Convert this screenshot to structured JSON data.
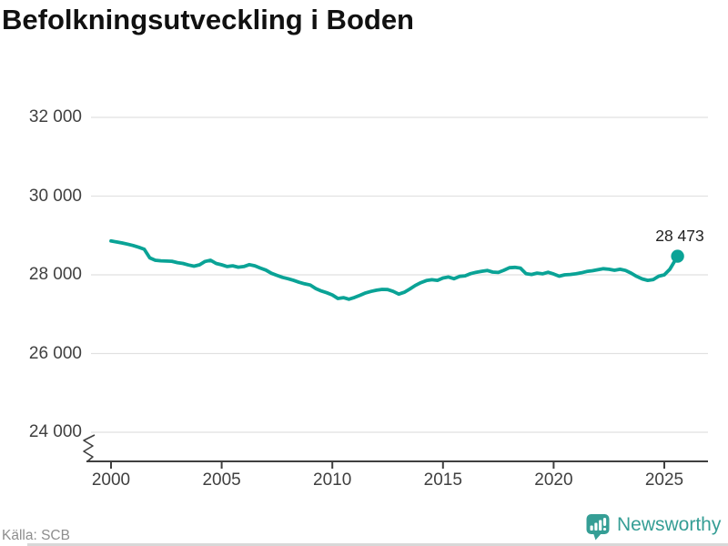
{
  "title": "Befolkningsutveckling i Boden",
  "source": "Källa: SCB",
  "brand": {
    "name": "Newsworthy",
    "icon": "newsworthy-bar-chart-speech-bubble",
    "color": "#359e95"
  },
  "chart_data": {
    "type": "line",
    "title": "Befolkningsutveckling i Boden",
    "xlabel": "",
    "ylabel": "",
    "grid": "horizontal",
    "line_color": "#0aa396",
    "marker_color": "#0aa396",
    "x_axis": {
      "ticks": [
        2000,
        2005,
        2010,
        2015,
        2020,
        2025
      ],
      "tick_labels": [
        "2000",
        "2005",
        "2010",
        "2015",
        "2020",
        "2025"
      ]
    },
    "y_axis": {
      "ticks": [
        24000,
        26000,
        28000,
        30000,
        32000
      ],
      "tick_labels": [
        "24 000",
        "26 000",
        "28 000",
        "30 000",
        "32 000"
      ],
      "axis_break": true
    },
    "annotation": {
      "label": "28 473",
      "value": 28473,
      "year": 2025.6
    },
    "series": [
      {
        "name": "Befolkning i Boden",
        "points": [
          [
            2000,
            28860
          ],
          [
            2000.25,
            28835
          ],
          [
            2000.5,
            28810
          ],
          [
            2000.75,
            28780
          ],
          [
            2001,
            28745
          ],
          [
            2001.25,
            28700
          ],
          [
            2001.5,
            28650
          ],
          [
            2001.75,
            28430
          ],
          [
            2002,
            28370
          ],
          [
            2002.25,
            28355
          ],
          [
            2002.5,
            28350
          ],
          [
            2002.75,
            28345
          ],
          [
            2003,
            28310
          ],
          [
            2003.25,
            28290
          ],
          [
            2003.5,
            28250
          ],
          [
            2003.75,
            28220
          ],
          [
            2004,
            28255
          ],
          [
            2004.25,
            28340
          ],
          [
            2004.5,
            28370
          ],
          [
            2004.75,
            28290
          ],
          [
            2005,
            28255
          ],
          [
            2005.25,
            28210
          ],
          [
            2005.5,
            28230
          ],
          [
            2005.75,
            28195
          ],
          [
            2006,
            28210
          ],
          [
            2006.25,
            28260
          ],
          [
            2006.5,
            28230
          ],
          [
            2006.75,
            28170
          ],
          [
            2007,
            28120
          ],
          [
            2007.25,
            28040
          ],
          [
            2007.5,
            27985
          ],
          [
            2007.75,
            27935
          ],
          [
            2008,
            27900
          ],
          [
            2008.25,
            27860
          ],
          [
            2008.5,
            27810
          ],
          [
            2008.75,
            27770
          ],
          [
            2009,
            27740
          ],
          [
            2009.25,
            27650
          ],
          [
            2009.5,
            27590
          ],
          [
            2009.75,
            27545
          ],
          [
            2010,
            27490
          ],
          [
            2010.25,
            27400
          ],
          [
            2010.5,
            27420
          ],
          [
            2010.75,
            27380
          ],
          [
            2011,
            27425
          ],
          [
            2011.25,
            27480
          ],
          [
            2011.5,
            27540
          ],
          [
            2011.75,
            27580
          ],
          [
            2012,
            27610
          ],
          [
            2012.25,
            27630
          ],
          [
            2012.5,
            27625
          ],
          [
            2012.75,
            27580
          ],
          [
            2013,
            27510
          ],
          [
            2013.25,
            27555
          ],
          [
            2013.5,
            27640
          ],
          [
            2013.75,
            27730
          ],
          [
            2014,
            27800
          ],
          [
            2014.25,
            27855
          ],
          [
            2014.5,
            27875
          ],
          [
            2014.75,
            27860
          ],
          [
            2015,
            27920
          ],
          [
            2015.25,
            27945
          ],
          [
            2015.5,
            27900
          ],
          [
            2015.75,
            27960
          ],
          [
            2016,
            27975
          ],
          [
            2016.25,
            28030
          ],
          [
            2016.5,
            28065
          ],
          [
            2016.75,
            28090
          ],
          [
            2017,
            28110
          ],
          [
            2017.25,
            28070
          ],
          [
            2017.5,
            28060
          ],
          [
            2017.75,
            28115
          ],
          [
            2018,
            28180
          ],
          [
            2018.25,
            28190
          ],
          [
            2018.5,
            28170
          ],
          [
            2018.75,
            28030
          ],
          [
            2019,
            28010
          ],
          [
            2019.25,
            28045
          ],
          [
            2019.5,
            28025
          ],
          [
            2019.75,
            28065
          ],
          [
            2020,
            28020
          ],
          [
            2020.25,
            27965
          ],
          [
            2020.5,
            28000
          ],
          [
            2020.75,
            28010
          ],
          [
            2021,
            28025
          ],
          [
            2021.25,
            28050
          ],
          [
            2021.5,
            28085
          ],
          [
            2021.75,
            28105
          ],
          [
            2022,
            28130
          ],
          [
            2022.25,
            28155
          ],
          [
            2022.5,
            28140
          ],
          [
            2022.75,
            28115
          ],
          [
            2023,
            28140
          ],
          [
            2023.25,
            28110
          ],
          [
            2023.5,
            28045
          ],
          [
            2023.75,
            27960
          ],
          [
            2024,
            27895
          ],
          [
            2024.25,
            27860
          ],
          [
            2024.5,
            27880
          ],
          [
            2024.75,
            27965
          ],
          [
            2025,
            28000
          ],
          [
            2025.25,
            28140
          ],
          [
            2025.6,
            28473
          ]
        ]
      }
    ]
  }
}
